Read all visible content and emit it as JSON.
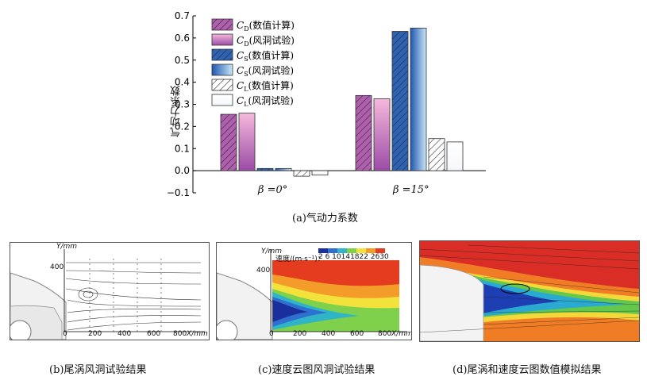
{
  "chart_data": {
    "type": "bar",
    "categories": [
      "β =0°",
      "β =15°"
    ],
    "ylabel": "气动力系数",
    "ylim": [
      -0.1,
      0.7
    ],
    "yticks": [
      "−0.1",
      "0.0",
      "0.1",
      "0.2",
      "0.3",
      "0.4",
      "0.5",
      "0.6",
      "0.7"
    ],
    "grid": false,
    "legend_position": "top-left",
    "series": [
      {
        "name": "CD(数值计算)",
        "values": [
          0.255,
          0.34
        ],
        "fill": "#b05fae",
        "hatch": true
      },
      {
        "name": "CD(风洞试验)",
        "values": [
          0.26,
          0.325
        ],
        "fill": "#c48bc7",
        "hatch": false
      },
      {
        "name": "CS(数值计算)",
        "values": [
          0.01,
          0.63
        ],
        "fill": "#2e63b4",
        "hatch": true
      },
      {
        "name": "CS(风洞试验)",
        "values": [
          0.01,
          0.645
        ],
        "fill": "#5f93d6",
        "hatch": false
      },
      {
        "name": "CL(数值计算)",
        "values": [
          -0.025,
          0.145
        ],
        "fill": "#ffffff",
        "hatch": true
      },
      {
        "name": "CL(风洞试验)",
        "values": [
          -0.02,
          0.13
        ],
        "fill": "#ffffff",
        "hatch": false
      }
    ]
  },
  "legend": [
    {
      "sym": "C",
      "sub": "D",
      "text": "(数值计算)"
    },
    {
      "sym": "C",
      "sub": "D",
      "text": "(风洞试验)"
    },
    {
      "sym": "C",
      "sub": "S",
      "text": "(数值计算)"
    },
    {
      "sym": "C",
      "sub": "S",
      "text": "(风洞试验)"
    },
    {
      "sym": "C",
      "sub": "L",
      "text": "(数值计算)"
    },
    {
      "sym": "C",
      "sub": "L",
      "text": "(风洞试验)"
    }
  ],
  "captions": {
    "a": "(a)气动力系数",
    "b": "(b)尾涡风洞试验结果",
    "c": "(c)速度云图风洞试验结果",
    "d": "(d)尾涡和速度云图数值模拟结果"
  },
  "panel_b": {
    "y_label": "Y/mm",
    "x_label": "X/mm",
    "y_tick": "400",
    "x_ticks": [
      "0",
      "200",
      "400",
      "600",
      "800"
    ]
  },
  "panel_c": {
    "y_label": "Y/mm",
    "x_label": "X/mm",
    "y_tick": "400",
    "x_ticks": [
      "0",
      "200",
      "400",
      "600",
      "800"
    ],
    "colorbar_label": "速度/(m·s⁻¹)：",
    "colorbar_ticks": "2  6 10141822 2630"
  }
}
